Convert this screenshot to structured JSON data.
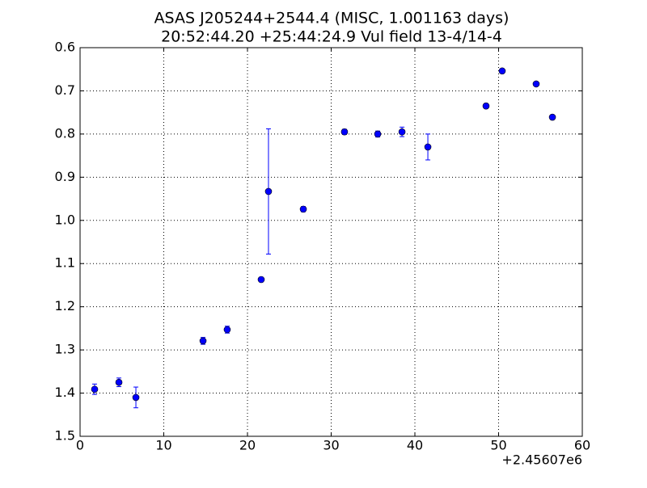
{
  "chart_data": {
    "type": "errorbar",
    "title": "ASAS J205244+2544.4 (MISC, 1.001163 days)",
    "subtitle": "20:52:44.20 +25:44:24.9 Vul field 13-4/14-4",
    "x_offset_label": "+2.45607e6",
    "x": [
      1.74,
      4.64,
      6.67,
      14.69,
      17.58,
      21.64,
      22.51,
      26.67,
      31.59,
      35.56,
      38.46,
      41.55,
      48.5,
      50.43,
      54.49,
      56.43
    ],
    "values": [
      1.391,
      1.375,
      1.41,
      1.279,
      1.253,
      1.137,
      0.933,
      0.974,
      0.795,
      0.8,
      0.795,
      0.83,
      0.735,
      0.654,
      0.684,
      0.761
    ],
    "errors": [
      0.012,
      0.01,
      0.024,
      0.008,
      0.008,
      0.005,
      0.145,
      0.006,
      0.006,
      0.007,
      0.011,
      0.03,
      0.005,
      0.005,
      0.004,
      0.005
    ],
    "color": "#0000ff",
    "xlim": [
      0,
      60
    ],
    "xticks": [
      0,
      10,
      20,
      30,
      40,
      50,
      60
    ],
    "ylim": [
      0.6,
      1.5
    ],
    "y_inverted": true,
    "yticks": [
      0.6,
      0.7,
      0.8,
      0.9,
      {
        "value": 1,
        "label": "1.0"
      },
      1.1,
      1.2,
      1.3,
      1.4,
      1.5
    ],
    "grid": true
  }
}
